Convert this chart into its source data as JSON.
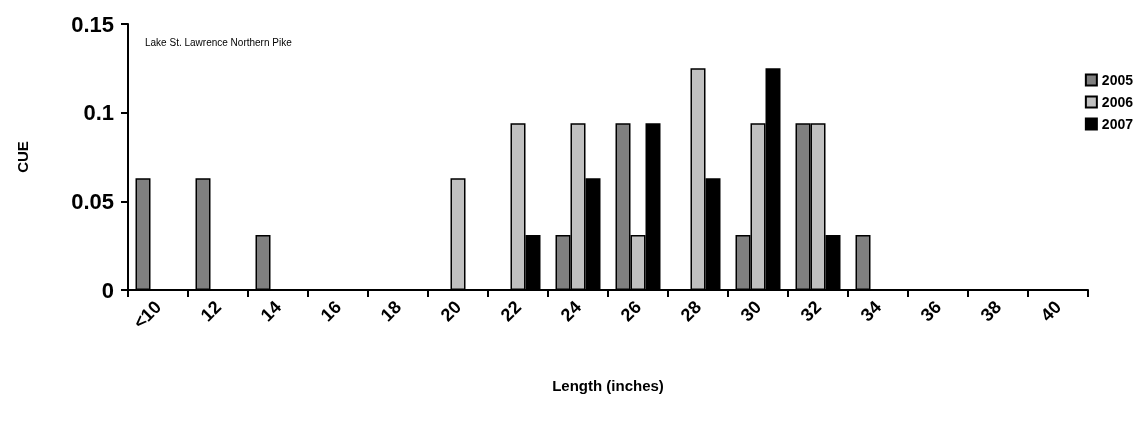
{
  "chart_data": {
    "type": "bar",
    "title": "Lake St. Lawrence Northern Pike",
    "xlabel": "Length (inches)",
    "ylabel": "CUE",
    "categories": [
      "<10",
      "12",
      "14",
      "16",
      "18",
      "20",
      "22",
      "24",
      "26",
      "28",
      "30",
      "32",
      "34",
      "36",
      "38",
      "40"
    ],
    "series": [
      {
        "name": "2005",
        "color": "#808080",
        "values": [
          0.063,
          0.063,
          0.031,
          null,
          null,
          null,
          null,
          0.031,
          0.094,
          null,
          0.031,
          0.094,
          0.031,
          null,
          null,
          null
        ]
      },
      {
        "name": "2006",
        "color": "#c0c0c0",
        "values": [
          null,
          null,
          null,
          null,
          null,
          0.063,
          0.094,
          0.094,
          0.031,
          0.125,
          0.094,
          0.094,
          null,
          null,
          null,
          null
        ]
      },
      {
        "name": "2007",
        "color": "#000000",
        "values": [
          null,
          null,
          null,
          null,
          null,
          null,
          0.031,
          0.063,
          0.094,
          0.063,
          0.125,
          0.031,
          null,
          null,
          null,
          null
        ]
      }
    ],
    "ylim": [
      0,
      0.15
    ],
    "yticks": [
      0,
      0.05,
      0.1,
      0.15
    ],
    "grid": false,
    "legend": "top right"
  }
}
